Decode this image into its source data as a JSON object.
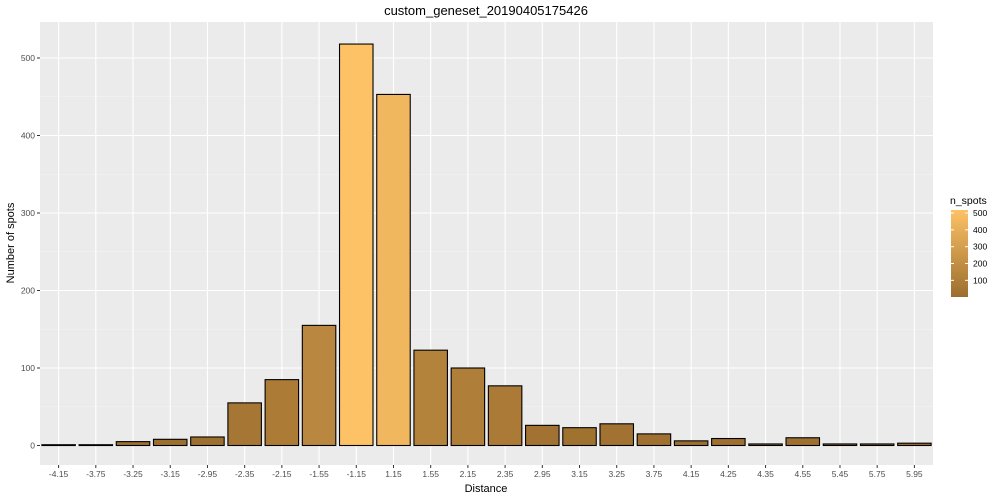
{
  "chart_data": {
    "type": "bar",
    "title": "custom_geneset_20190405175426",
    "xlabel": "Distance",
    "ylabel": "Number of spots",
    "categories": [
      "-4.15",
      "-3.75",
      "-3.25",
      "-3.15",
      "-2.95",
      "-2.35",
      "-2.15",
      "-1.55",
      "-1.15",
      "1.15",
      "1.55",
      "2.15",
      "2.35",
      "2.95",
      "3.15",
      "3.25",
      "3.75",
      "4.15",
      "4.25",
      "4.35",
      "4.55",
      "5.45",
      "5.75",
      "5.95"
    ],
    "values": [
      1,
      1,
      5,
      8,
      11,
      55,
      85,
      155,
      518,
      453,
      123,
      100,
      77,
      26,
      23,
      28,
      15,
      6,
      9,
      2,
      10,
      2,
      2,
      3
    ],
    "ylim": [
      0,
      520
    ],
    "yticks": [
      0,
      100,
      200,
      300,
      400,
      500
    ],
    "grid": true,
    "legend": {
      "title": "n_spots",
      "position": "right",
      "ticks": [
        100,
        200,
        300,
        400,
        500
      ],
      "min": 1,
      "max": 518,
      "color_low": "#9c6e2e",
      "color_high": "#fdc266"
    },
    "panel_background": "#ebebeb",
    "bar_outline": "#000000"
  }
}
